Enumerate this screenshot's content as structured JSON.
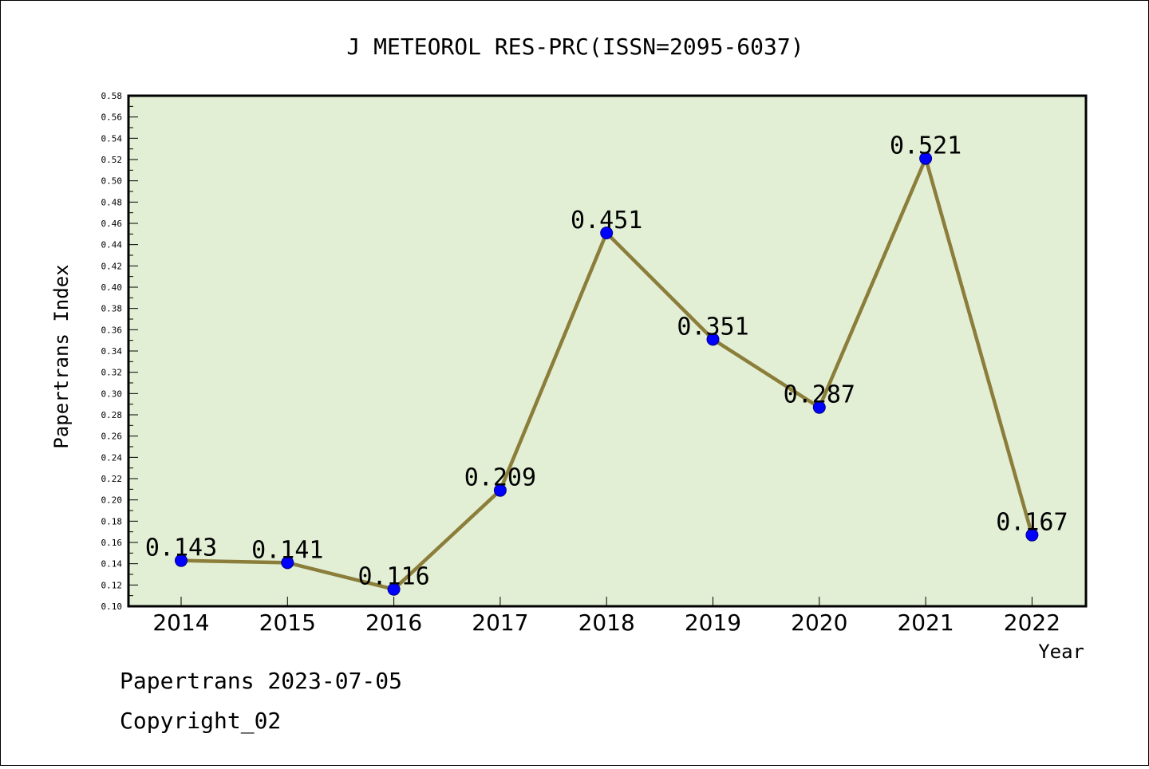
{
  "chart_data": {
    "type": "line",
    "title": "J METEOROL RES-PRC(ISSN=2095-6037)",
    "xlabel": "Year",
    "ylabel": "Papertrans Index",
    "categories": [
      "2014",
      "2015",
      "2016",
      "2017",
      "2018",
      "2019",
      "2020",
      "2021",
      "2022"
    ],
    "series": [
      {
        "values": [
          0.143,
          0.141,
          0.116,
          0.209,
          0.451,
          0.351,
          0.287,
          0.521,
          0.167
        ]
      }
    ],
    "data_labels": [
      "0.143",
      "0.141",
      "0.116",
      "0.209",
      "0.451",
      "0.351",
      "0.287",
      "0.521",
      "0.167"
    ],
    "ylim": [
      0.1,
      0.58
    ],
    "y_tick_step": 0.02,
    "grid": false,
    "legend": "none",
    "colors": {
      "plot_background": "#e2efd5",
      "line": "#8b7d3a",
      "marker": "#0000ff",
      "marker_outline": "#000080"
    }
  },
  "footer": {
    "line1": "Papertrans 2023-07-05",
    "line2": "Copyright_02"
  }
}
